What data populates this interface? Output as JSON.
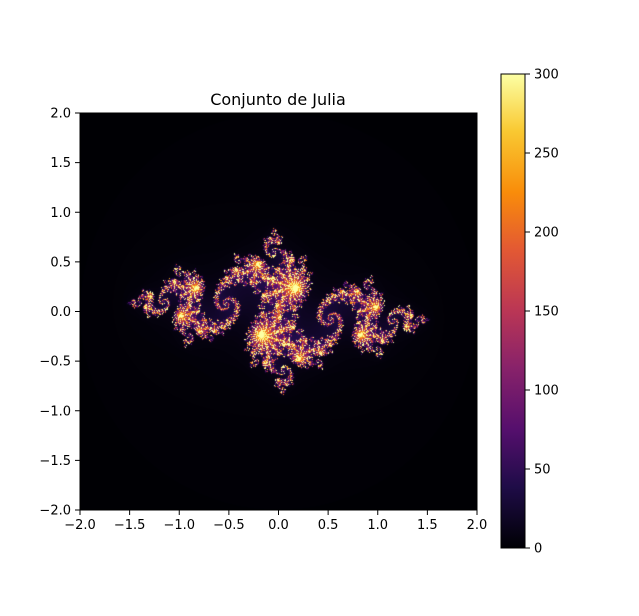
{
  "chart_data": {
    "type": "heatmap",
    "title": "Conjunto de Julia",
    "xlabel": "",
    "ylabel": "",
    "xlim": [
      -2.0,
      2.0
    ],
    "ylim": [
      -2.0,
      2.0
    ],
    "x_ticks": [
      "−2.0",
      "−1.5",
      "−1.0",
      "−0.5",
      "0.0",
      "0.5",
      "1.0",
      "1.5",
      "2.0"
    ],
    "x_tick_values": [
      -2.0,
      -1.5,
      -1.0,
      -0.5,
      0.0,
      0.5,
      1.0,
      1.5,
      2.0
    ],
    "y_ticks": [
      "−2.0",
      "−1.5",
      "−1.0",
      "−0.5",
      "0.0",
      "0.5",
      "1.0",
      "1.5",
      "2.0"
    ],
    "y_tick_values": [
      -2.0,
      -1.5,
      -1.0,
      -0.5,
      0.0,
      0.5,
      1.0,
      1.5,
      2.0
    ],
    "colormap": "inferno",
    "colorbar": {
      "range": [
        0,
        300
      ],
      "tick_values": [
        0,
        50,
        100,
        150,
        200,
        250,
        300
      ],
      "tick_labels": [
        "0",
        "50",
        "100",
        "150",
        "200",
        "250",
        "300"
      ]
    },
    "max_iterations": 300,
    "grid": false,
    "legend": "none"
  }
}
